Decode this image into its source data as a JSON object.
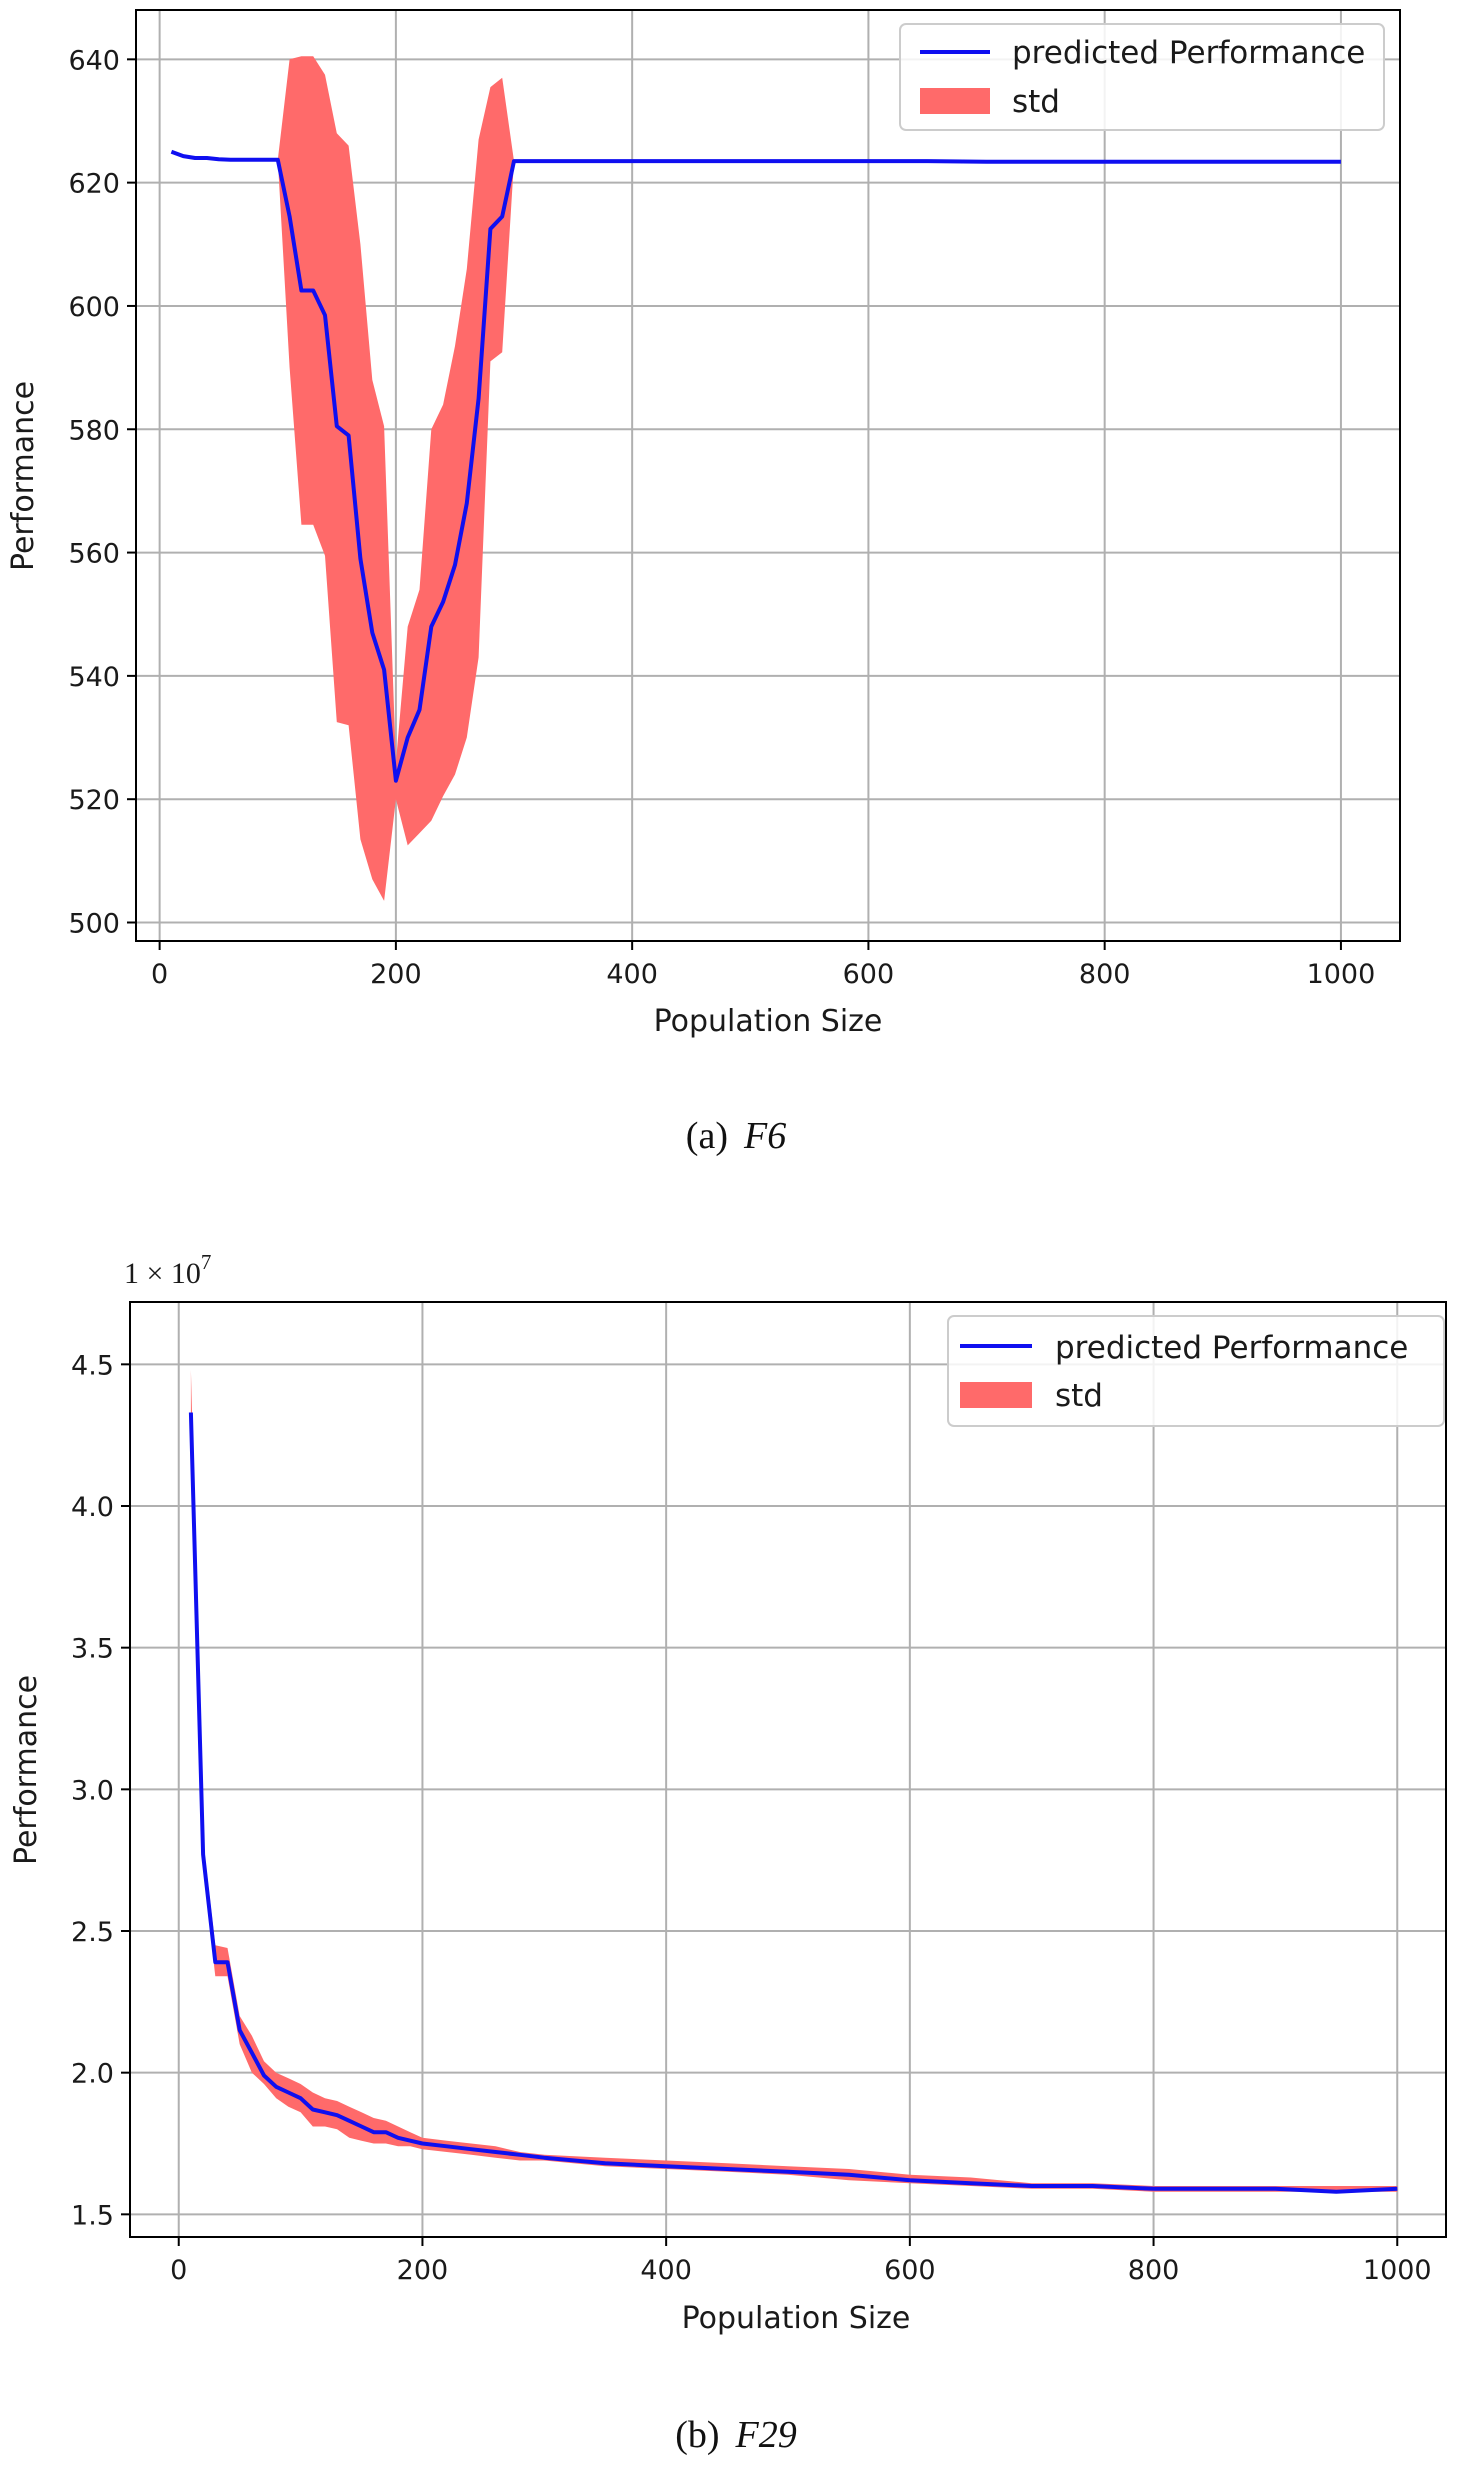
{
  "chart_data": [
    {
      "type": "line",
      "caption": {
        "label": "(a)",
        "function": "F6"
      },
      "xlabel": "Population Size",
      "ylabel": "Performance",
      "xlim": [
        -20,
        1050
      ],
      "ylim": [
        497,
        648
      ],
      "x_ticks": [
        0,
        200,
        400,
        600,
        800,
        1000
      ],
      "y_ticks": [
        500,
        520,
        540,
        560,
        580,
        600,
        620,
        640
      ],
      "grid": true,
      "legend": {
        "placement": "top-right",
        "entries": [
          "predicted Performance",
          "std"
        ]
      },
      "colors": {
        "line": "#0f0ff0",
        "band": "#ff6a6a"
      },
      "series": [
        {
          "name": "predicted Performance",
          "x": [
            10,
            20,
            30,
            40,
            50,
            60,
            70,
            80,
            90,
            100,
            110,
            120,
            130,
            140,
            150,
            160,
            170,
            180,
            190,
            200,
            210,
            220,
            230,
            240,
            250,
            260,
            270,
            280,
            290,
            300,
            350,
            400,
            450,
            500,
            550,
            600,
            650,
            700,
            750,
            800,
            850,
            900,
            950,
            1000
          ],
          "y": [
            625,
            624.3,
            624,
            624,
            623.8,
            623.7,
            623.7,
            623.7,
            623.7,
            623.7,
            614.5,
            602.5,
            602.5,
            598.5,
            580.5,
            579,
            559,
            547,
            541,
            523,
            530,
            534.5,
            548,
            552,
            558,
            568,
            585,
            612.5,
            614.5,
            623.5,
            623.5,
            623.5,
            623.5,
            623.5,
            623.5,
            623.5,
            623.5,
            623.4,
            623.4,
            623.4,
            623.4,
            623.4,
            623.4,
            623.4
          ]
        },
        {
          "name": "std",
          "x": [
            10,
            20,
            30,
            40,
            50,
            60,
            70,
            80,
            90,
            100,
            110,
            120,
            130,
            140,
            150,
            160,
            170,
            180,
            190,
            200,
            210,
            220,
            230,
            240,
            250,
            260,
            270,
            280,
            290,
            300,
            350,
            400,
            450,
            500,
            550,
            600,
            650,
            700,
            750,
            800,
            850,
            900,
            950,
            1000
          ],
          "lower": [
            625,
            624.3,
            624,
            624,
            623.8,
            623.7,
            623.7,
            623.7,
            623.7,
            623.7,
            590,
            564.5,
            564.5,
            559.5,
            532.5,
            532,
            513.5,
            507,
            503.5,
            520,
            512.5,
            514.5,
            516.5,
            520.5,
            524,
            530,
            543,
            591,
            592.5,
            623.5,
            623.5,
            623.5,
            623.5,
            623.5,
            623.5,
            623.5,
            623.5,
            623.4,
            623.4,
            623.4,
            623.4,
            623.4,
            623.4,
            623.4
          ],
          "upper": [
            625,
            624.3,
            624,
            624,
            623.8,
            623.7,
            623.7,
            623.7,
            623.7,
            623.7,
            640,
            640.5,
            640.5,
            637.5,
            628,
            626,
            610,
            588,
            580.5,
            526,
            548,
            554,
            580,
            584,
            593.5,
            606,
            627,
            635.5,
            637,
            623.5,
            623.5,
            623.5,
            623.5,
            623.5,
            623.5,
            623.5,
            623.5,
            623.4,
            623.4,
            623.4,
            623.4,
            623.4,
            623.4,
            623.4
          ]
        }
      ]
    },
    {
      "type": "line",
      "caption": {
        "label": "(b)",
        "function": "F29"
      },
      "xlabel": "Population Size",
      "ylabel": "Performance",
      "offset_text": "1 × 10^7",
      "offset_mantissa": "1 × 10",
      "offset_exponent": "7",
      "xlim": [
        -40,
        1040
      ],
      "ylim": [
        1.42,
        4.72
      ],
      "x_ticks": [
        0,
        200,
        400,
        600,
        800,
        1000
      ],
      "y_ticks": [
        1.5,
        2.0,
        2.5,
        3.0,
        3.5,
        4.0,
        4.5
      ],
      "y_tick_labels": [
        "1.5",
        "2.0",
        "2.5",
        "3.0",
        "3.5",
        "4.0",
        "4.5"
      ],
      "grid": true,
      "legend": {
        "placement": "top-right",
        "entries": [
          "predicted Performance",
          "std"
        ]
      },
      "colors": {
        "line": "#0f0ff0",
        "band": "#ff6a6a"
      },
      "series": [
        {
          "name": "predicted Performance",
          "x": [
            10,
            20,
            30,
            40,
            50,
            60,
            70,
            80,
            90,
            100,
            110,
            120,
            130,
            140,
            150,
            160,
            170,
            180,
            190,
            200,
            220,
            240,
            260,
            280,
            300,
            350,
            400,
            450,
            500,
            550,
            600,
            650,
            700,
            750,
            800,
            850,
            900,
            950,
            1000
          ],
          "y": [
            4.33,
            2.77,
            2.39,
            2.39,
            2.15,
            2.07,
            1.99,
            1.95,
            1.93,
            1.91,
            1.87,
            1.86,
            1.85,
            1.83,
            1.81,
            1.79,
            1.79,
            1.77,
            1.76,
            1.75,
            1.74,
            1.73,
            1.72,
            1.71,
            1.7,
            1.68,
            1.67,
            1.66,
            1.65,
            1.64,
            1.62,
            1.61,
            1.6,
            1.6,
            1.59,
            1.59,
            1.59,
            1.58,
            1.59
          ]
        },
        {
          "name": "std",
          "x": [
            10,
            20,
            30,
            40,
            50,
            60,
            70,
            80,
            90,
            100,
            110,
            120,
            130,
            140,
            150,
            160,
            170,
            180,
            190,
            200,
            220,
            240,
            260,
            280,
            300,
            350,
            400,
            450,
            500,
            550,
            600,
            650,
            700,
            750,
            800,
            850,
            900,
            950,
            1000
          ],
          "lower": [
            4.18,
            2.72,
            2.34,
            2.34,
            2.1,
            2.0,
            1.96,
            1.91,
            1.88,
            1.86,
            1.81,
            1.81,
            1.8,
            1.77,
            1.76,
            1.75,
            1.75,
            1.74,
            1.74,
            1.73,
            1.72,
            1.71,
            1.7,
            1.69,
            1.69,
            1.67,
            1.66,
            1.65,
            1.64,
            1.62,
            1.61,
            1.6,
            1.59,
            1.59,
            1.58,
            1.58,
            1.58,
            1.58,
            1.58
          ],
          "upper": [
            4.48,
            2.82,
            2.45,
            2.44,
            2.2,
            2.13,
            2.04,
            2.0,
            1.98,
            1.96,
            1.93,
            1.91,
            1.9,
            1.88,
            1.86,
            1.84,
            1.83,
            1.81,
            1.79,
            1.77,
            1.76,
            1.75,
            1.74,
            1.72,
            1.71,
            1.7,
            1.69,
            1.68,
            1.67,
            1.66,
            1.64,
            1.63,
            1.61,
            1.61,
            1.6,
            1.6,
            1.6,
            1.6,
            1.6
          ]
        }
      ]
    }
  ]
}
